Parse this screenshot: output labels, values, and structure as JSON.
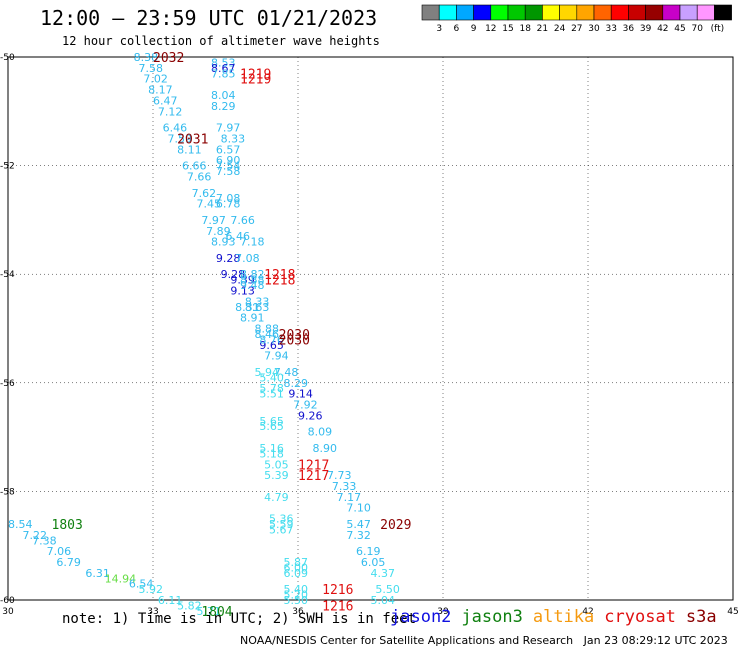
{
  "header": {
    "title": "12:00 – 23:59 UTC 01/21/2023",
    "subtitle": "12 hour collection of altimeter wave heights"
  },
  "footer": {
    "note": "note: 1) Time is in UTC; 2) SWH is in feet",
    "credit": "NOAA/NESDIS Center for Satellite Applications and Research   Jan 23 08:29:12 UTC 2023"
  },
  "satellites": [
    {
      "name": "jason2",
      "color": "#1010e0"
    },
    {
      "name": "jason3",
      "color": "#108010"
    },
    {
      "name": "altika",
      "color": "#f59a10"
    },
    {
      "name": "cryosat",
      "color": "#e01010"
    },
    {
      "name": "s3a",
      "color": "#8a0000"
    }
  ],
  "color_scale": {
    "labels": [
      "3",
      "6",
      "9",
      "12",
      "15",
      "18",
      "21",
      "24",
      "27",
      "30",
      "33",
      "36",
      "39",
      "42",
      "45",
      "70"
    ],
    "unit": "(ft)",
    "colors": [
      "#808080",
      "#00ffff",
      "#00a8ff",
      "#0000ff",
      "#00ff00",
      "#00c800",
      "#009600",
      "#ffff00",
      "#ffd700",
      "#ffa500",
      "#ff6400",
      "#ff0000",
      "#c80000",
      "#960000",
      "#c800c8",
      "#c8a0ff",
      "#ff96ff",
      "#000000"
    ]
  },
  "chart_data": {
    "type": "scatter",
    "x_ticks": [
      "30",
      "33",
      "36",
      "39",
      "42",
      "45"
    ],
    "y_ticks": [
      "-50",
      "-52",
      "-54",
      "-56",
      "-58",
      "-60"
    ],
    "xlim": [
      30,
      45
    ],
    "ylim": [
      -60,
      -50
    ],
    "grid": true,
    "points": [
      {
        "x": 32.6,
        "y": -50.0,
        "label": "8.38",
        "color": "#33bbee"
      },
      {
        "x": 32.7,
        "y": -50.2,
        "label": "7.58",
        "color": "#33bbee"
      },
      {
        "x": 32.8,
        "y": -50.4,
        "label": "7.02",
        "color": "#33bbee"
      },
      {
        "x": 32.9,
        "y": -50.6,
        "label": "8.17",
        "color": "#33bbee"
      },
      {
        "x": 33.0,
        "y": -50.8,
        "label": "6.47",
        "color": "#33bbee"
      },
      {
        "x": 33.1,
        "y": -51.0,
        "label": "7.12",
        "color": "#33bbee"
      },
      {
        "x": 33.2,
        "y": -51.3,
        "label": "6.46",
        "color": "#33bbee"
      },
      {
        "x": 33.3,
        "y": -51.5,
        "label": "7.59",
        "color": "#33bbee"
      },
      {
        "x": 33.5,
        "y": -51.7,
        "label": "8.11",
        "color": "#33bbee"
      },
      {
        "x": 33.6,
        "y": -52.0,
        "label": "6.66",
        "color": "#33bbee"
      },
      {
        "x": 33.7,
        "y": -52.2,
        "label": "7.66",
        "color": "#33bbee"
      },
      {
        "x": 33.8,
        "y": -52.5,
        "label": "7.62",
        "color": "#33bbee"
      },
      {
        "x": 33.9,
        "y": -52.7,
        "label": "7.45",
        "color": "#33bbee"
      },
      {
        "x": 34.0,
        "y": -53.0,
        "label": "7.97",
        "color": "#33bbee"
      },
      {
        "x": 34.1,
        "y": -53.2,
        "label": "7.89",
        "color": "#33bbee"
      },
      {
        "x": 34.2,
        "y": -53.4,
        "label": "8.93",
        "color": "#33bbee"
      },
      {
        "x": 34.3,
        "y": -53.7,
        "label": "9.28",
        "color": "#1010cc"
      },
      {
        "x": 34.4,
        "y": -54.0,
        "label": "9.28",
        "color": "#1010cc"
      },
      {
        "x": 34.6,
        "y": -54.1,
        "label": "9.39",
        "color": "#1010cc"
      },
      {
        "x": 34.6,
        "y": -54.3,
        "label": "9.13",
        "color": "#1010cc"
      },
      {
        "x": 34.7,
        "y": -54.6,
        "label": "8.31",
        "color": "#33bbee"
      },
      {
        "x": 34.8,
        "y": -54.8,
        "label": "8.91",
        "color": "#33bbee"
      },
      {
        "x": 35.2,
        "y": -55.3,
        "label": "9.65",
        "color": "#1010cc"
      },
      {
        "x": 35.3,
        "y": -55.5,
        "label": "7.94",
        "color": "#33bbee"
      },
      {
        "x": 35.5,
        "y": -55.8,
        "label": "7.48",
        "color": "#33bbee"
      },
      {
        "x": 35.7,
        "y": -56.0,
        "label": "8.29",
        "color": "#33bbee"
      },
      {
        "x": 35.8,
        "y": -56.2,
        "label": "9.14",
        "color": "#1010cc"
      },
      {
        "x": 35.9,
        "y": -56.4,
        "label": "7.92",
        "color": "#33bbee"
      },
      {
        "x": 36.0,
        "y": -56.6,
        "label": "9.26",
        "color": "#1010cc"
      },
      {
        "x": 36.2,
        "y": -56.9,
        "label": "8.09",
        "color": "#33bbee"
      },
      {
        "x": 36.3,
        "y": -57.2,
        "label": "8.90",
        "color": "#33bbee"
      },
      {
        "x": 36.6,
        "y": -57.7,
        "label": "7.73",
        "color": "#33bbee"
      },
      {
        "x": 36.7,
        "y": -57.9,
        "label": "7.33",
        "color": "#33bbee"
      },
      {
        "x": 36.8,
        "y": -58.1,
        "label": "7.17",
        "color": "#33bbee"
      },
      {
        "x": 37.0,
        "y": -58.3,
        "label": "7.10",
        "color": "#33bbee"
      },
      {
        "x": 37.0,
        "y": -58.6,
        "label": "5.47",
        "color": "#33bbee"
      },
      {
        "x": 37.0,
        "y": -58.8,
        "label": "7.32",
        "color": "#33bbee"
      },
      {
        "x": 37.2,
        "y": -59.1,
        "label": "6.19",
        "color": "#33bbee"
      },
      {
        "x": 37.3,
        "y": -59.3,
        "label": "6.05",
        "color": "#33bbee"
      },
      {
        "x": 37.5,
        "y": -59.5,
        "label": "4.37",
        "color": "#44ddee"
      },
      {
        "x": 37.6,
        "y": -59.8,
        "label": "5.50",
        "color": "#44ddee"
      },
      {
        "x": 37.5,
        "y": -60.0,
        "label": "5.04",
        "color": "#44ddee"
      },
      {
        "x": 34.2,
        "y": -50.1,
        "label": "8.53",
        "color": "#33bbee"
      },
      {
        "x": 34.2,
        "y": -50.2,
        "label": "8.67",
        "color": "#1010cc"
      },
      {
        "x": 34.2,
        "y": -50.3,
        "label": "7.85",
        "color": "#33bbee"
      },
      {
        "x": 34.2,
        "y": -50.7,
        "label": "8.04",
        "color": "#33bbee"
      },
      {
        "x": 34.2,
        "y": -50.9,
        "label": "8.29",
        "color": "#33bbee"
      },
      {
        "x": 34.3,
        "y": -51.3,
        "label": "7.97",
        "color": "#33bbee"
      },
      {
        "x": 34.4,
        "y": -51.5,
        "label": "8.33",
        "color": "#33bbee"
      },
      {
        "x": 34.3,
        "y": -51.7,
        "label": "6.57",
        "color": "#33bbee"
      },
      {
        "x": 34.3,
        "y": -51.9,
        "label": "6.90",
        "color": "#33bbee"
      },
      {
        "x": 34.3,
        "y": -52.0,
        "label": "7.54",
        "color": "#33bbee"
      },
      {
        "x": 34.3,
        "y": -52.1,
        "label": "7.58",
        "color": "#33bbee"
      },
      {
        "x": 34.3,
        "y": -52.6,
        "label": "7.08",
        "color": "#33bbee"
      },
      {
        "x": 34.3,
        "y": -52.7,
        "label": "6.78",
        "color": "#33bbee"
      },
      {
        "x": 34.6,
        "y": -53.0,
        "label": "7.66",
        "color": "#33bbee"
      },
      {
        "x": 34.5,
        "y": -53.3,
        "label": "6.46",
        "color": "#33bbee"
      },
      {
        "x": 34.8,
        "y": -53.4,
        "label": "7.18",
        "color": "#33bbee"
      },
      {
        "x": 34.7,
        "y": -53.7,
        "label": "7.08",
        "color": "#33bbee"
      },
      {
        "x": 34.8,
        "y": -54.0,
        "label": "8.82",
        "color": "#33bbee"
      },
      {
        "x": 34.8,
        "y": -54.1,
        "label": "8.88",
        "color": "#33bbee"
      },
      {
        "x": 34.8,
        "y": -54.2,
        "label": "9.48",
        "color": "#33bbee"
      },
      {
        "x": 34.9,
        "y": -54.5,
        "label": "8.33",
        "color": "#33bbee"
      },
      {
        "x": 34.9,
        "y": -54.6,
        "label": "8.63",
        "color": "#33bbee"
      },
      {
        "x": 35.1,
        "y": -55.0,
        "label": "8.88",
        "color": "#33bbee"
      },
      {
        "x": 35.1,
        "y": -55.1,
        "label": "8.46",
        "color": "#33bbee"
      },
      {
        "x": 35.2,
        "y": -55.2,
        "label": "8.76",
        "color": "#33bbee"
      },
      {
        "x": 35.1,
        "y": -55.8,
        "label": "5.94",
        "color": "#44ddee"
      },
      {
        "x": 35.2,
        "y": -55.9,
        "label": "5.40",
        "color": "#44ddee"
      },
      {
        "x": 35.2,
        "y": -56.1,
        "label": "5.78",
        "color": "#44ddee"
      },
      {
        "x": 35.2,
        "y": -56.2,
        "label": "5.51",
        "color": "#44ddee"
      },
      {
        "x": 35.2,
        "y": -56.7,
        "label": "5.65",
        "color": "#44ddee"
      },
      {
        "x": 35.2,
        "y": -56.8,
        "label": "5.65",
        "color": "#44ddee"
      },
      {
        "x": 35.2,
        "y": -57.2,
        "label": "5.16",
        "color": "#44ddee"
      },
      {
        "x": 35.2,
        "y": -57.3,
        "label": "5.18",
        "color": "#44ddee"
      },
      {
        "x": 35.3,
        "y": -57.5,
        "label": "5.05",
        "color": "#44ddee"
      },
      {
        "x": 35.3,
        "y": -57.7,
        "label": "5.39",
        "color": "#44ddee"
      },
      {
        "x": 35.3,
        "y": -58.1,
        "label": "4.79",
        "color": "#44ddee"
      },
      {
        "x": 35.4,
        "y": -58.5,
        "label": "5.36",
        "color": "#44ddee"
      },
      {
        "x": 35.4,
        "y": -58.6,
        "label": "5.59",
        "color": "#44ddee"
      },
      {
        "x": 35.4,
        "y": -58.7,
        "label": "5.67",
        "color": "#44ddee"
      },
      {
        "x": 35.7,
        "y": -59.3,
        "label": "5.87",
        "color": "#44ddee"
      },
      {
        "x": 35.7,
        "y": -59.4,
        "label": "6.00",
        "color": "#44ddee"
      },
      {
        "x": 35.7,
        "y": -59.5,
        "label": "6.09",
        "color": "#44ddee"
      },
      {
        "x": 35.7,
        "y": -59.8,
        "label": "5.40",
        "color": "#44ddee"
      },
      {
        "x": 35.7,
        "y": -59.9,
        "label": "5.20",
        "color": "#44ddee"
      },
      {
        "x": 35.7,
        "y": -60.0,
        "label": "5.50",
        "color": "#44ddee"
      },
      {
        "x": 30.0,
        "y": -58.6,
        "label": "8.54",
        "color": "#33bbee"
      },
      {
        "x": 30.3,
        "y": -58.8,
        "label": "7.22",
        "color": "#33bbee"
      },
      {
        "x": 30.5,
        "y": -58.9,
        "label": "7.38",
        "color": "#33bbee"
      },
      {
        "x": 30.8,
        "y": -59.1,
        "label": "7.06",
        "color": "#33bbee"
      },
      {
        "x": 31.0,
        "y": -59.3,
        "label": "6.79",
        "color": "#33bbee"
      },
      {
        "x": 31.6,
        "y": -59.5,
        "label": "6.31",
        "color": "#33bbee"
      },
      {
        "x": 32.0,
        "y": -59.6,
        "label": "14.94",
        "color": "#66dd44"
      },
      {
        "x": 32.5,
        "y": -59.7,
        "label": "6.54",
        "color": "#33bbee"
      },
      {
        "x": 32.7,
        "y": -59.8,
        "label": "5.92",
        "color": "#44ddee"
      },
      {
        "x": 33.1,
        "y": -60.0,
        "label": "6.11",
        "color": "#44ddee"
      },
      {
        "x": 33.5,
        "y": -60.1,
        "label": "5.82",
        "color": "#44ddee"
      },
      {
        "x": 33.9,
        "y": -60.2,
        "label": "5.71",
        "color": "#44ddee"
      }
    ],
    "track_labels": [
      {
        "x": 33.0,
        "y": -50.0,
        "text": "2032",
        "color": "#8a0000"
      },
      {
        "x": 34.8,
        "y": -50.3,
        "text": "1219",
        "color": "#e01010"
      },
      {
        "x": 34.8,
        "y": -50.4,
        "text": "1219",
        "color": "#e01010"
      },
      {
        "x": 33.5,
        "y": -51.5,
        "text": "2031",
        "color": "#8a0000"
      },
      {
        "x": 35.3,
        "y": -54.0,
        "text": "1218",
        "color": "#e01010"
      },
      {
        "x": 35.3,
        "y": -54.1,
        "text": "1218",
        "color": "#e01010"
      },
      {
        "x": 35.6,
        "y": -55.1,
        "text": "2030",
        "color": "#8a0000"
      },
      {
        "x": 35.6,
        "y": -55.2,
        "text": "2030",
        "color": "#8a0000"
      },
      {
        "x": 36.0,
        "y": -57.5,
        "text": "1217",
        "color": "#e01010"
      },
      {
        "x": 36.0,
        "y": -57.7,
        "text": "1217",
        "color": "#e01010"
      },
      {
        "x": 37.7,
        "y": -58.6,
        "text": "2029",
        "color": "#8a0000"
      },
      {
        "x": 36.5,
        "y": -59.8,
        "text": "1216",
        "color": "#e01010"
      },
      {
        "x": 36.5,
        "y": -60.1,
        "text": "1216",
        "color": "#e01010"
      },
      {
        "x": 30.9,
        "y": -58.6,
        "text": "1803",
        "color": "#108010"
      },
      {
        "x": 34.0,
        "y": -60.2,
        "text": "1804",
        "color": "#108010"
      }
    ]
  }
}
